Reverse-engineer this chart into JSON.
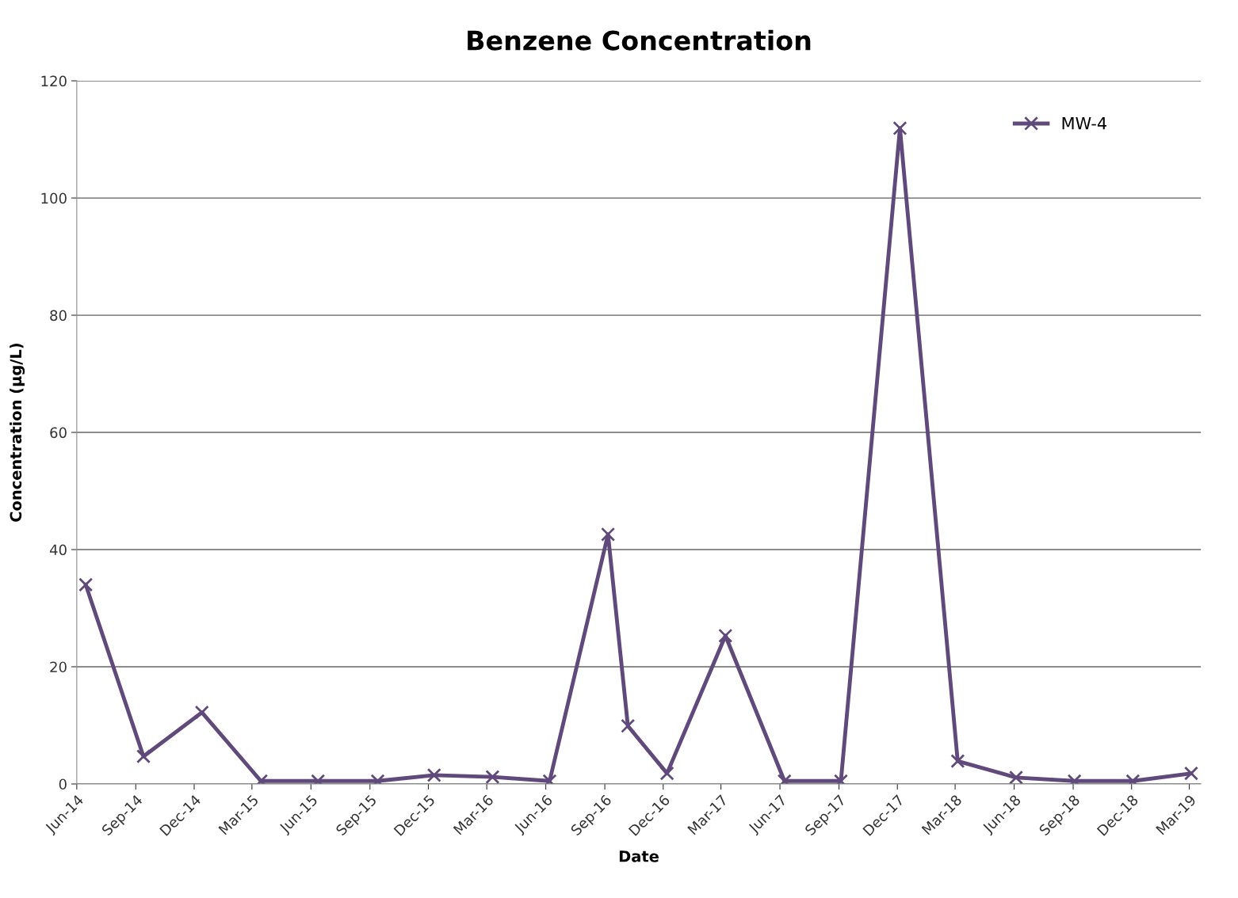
{
  "chart_data": {
    "type": "line",
    "title": "Benzene Concentration",
    "xlabel": "Date",
    "ylabel": "Concentration (µg/L)",
    "x": [
      "2014-06-15",
      "2014-09-13",
      "2014-12-13",
      "2015-03-15",
      "2015-06-12",
      "2015-09-13",
      "2015-12-10",
      "2016-03-10",
      "2016-06-07",
      "2016-09-06",
      "2016-10-07",
      "2016-12-07",
      "2017-03-08",
      "2017-06-08",
      "2017-09-04",
      "2017-12-05",
      "2018-03-05",
      "2018-06-04",
      "2018-09-03",
      "2018-12-03",
      "2019-03-04"
    ],
    "series": [
      {
        "name": "MW-4",
        "color": "#604a7b",
        "values": [
          34,
          4.7,
          12.2,
          0.5,
          0.5,
          0.5,
          1.5,
          1.2,
          0.5,
          42.6,
          9.9,
          1.8,
          25.3,
          0.5,
          0.5,
          111.9,
          3.9,
          1.1,
          0.5,
          0.5,
          1.8
        ]
      }
    ],
    "xlim": [
      "2014-06-01",
      "2019-03-19"
    ],
    "xticks": [
      {
        "value": "2014-06-01",
        "label": "Jun-14"
      },
      {
        "value": "2014-09-01",
        "label": "Sep-14"
      },
      {
        "value": "2014-12-01",
        "label": "Dec-14"
      },
      {
        "value": "2015-03-01",
        "label": "Mar-15"
      },
      {
        "value": "2015-06-01",
        "label": "Jun-15"
      },
      {
        "value": "2015-09-01",
        "label": "Sep-15"
      },
      {
        "value": "2015-12-01",
        "label": "Dec-15"
      },
      {
        "value": "2016-03-01",
        "label": "Mar-16"
      },
      {
        "value": "2016-06-01",
        "label": "Jun-16"
      },
      {
        "value": "2016-09-01",
        "label": "Sep-16"
      },
      {
        "value": "2016-12-01",
        "label": "Dec-16"
      },
      {
        "value": "2017-03-01",
        "label": "Mar-17"
      },
      {
        "value": "2017-06-01",
        "label": "Jun-17"
      },
      {
        "value": "2017-09-01",
        "label": "Sep-17"
      },
      {
        "value": "2017-12-01",
        "label": "Dec-17"
      },
      {
        "value": "2018-03-01",
        "label": "Mar-18"
      },
      {
        "value": "2018-06-01",
        "label": "Jun-18"
      },
      {
        "value": "2018-09-01",
        "label": "Sep-18"
      },
      {
        "value": "2018-12-01",
        "label": "Dec-18"
      },
      {
        "value": "2019-03-01",
        "label": "Mar-19"
      }
    ],
    "ylim": [
      0,
      120
    ],
    "yticks": [
      0,
      20,
      40,
      60,
      80,
      100,
      120
    ],
    "grid": "y",
    "legend": "top right",
    "marker": "cross",
    "line_style": "solid"
  }
}
